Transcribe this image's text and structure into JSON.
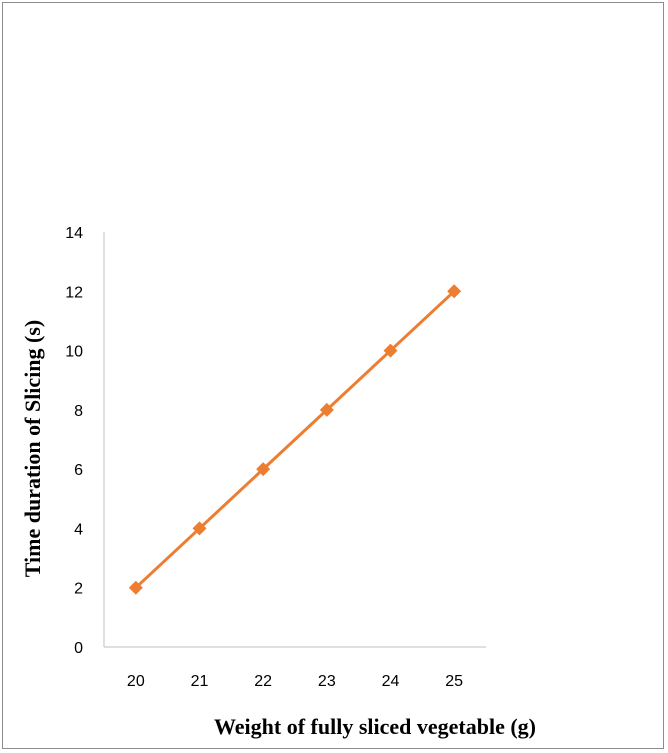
{
  "chart_data": {
    "type": "line",
    "title": "",
    "xlabel": "Weight of fully sliced vegetable (g)",
    "ylabel": "Time duration of Slicing (s)",
    "x": [
      20,
      21,
      22,
      23,
      24,
      25
    ],
    "categories": [
      "20",
      "21",
      "22",
      "23",
      "24",
      "25"
    ],
    "series": [
      {
        "values": [
          2,
          4,
          6,
          8,
          10,
          12
        ],
        "color": "#ED7D31",
        "marker": "diamond"
      }
    ],
    "ylim": [
      0,
      14
    ],
    "yticks": [
      "0",
      "2",
      "4",
      "6",
      "8",
      "10",
      "12",
      "14"
    ],
    "grid": false,
    "legend": "none"
  }
}
